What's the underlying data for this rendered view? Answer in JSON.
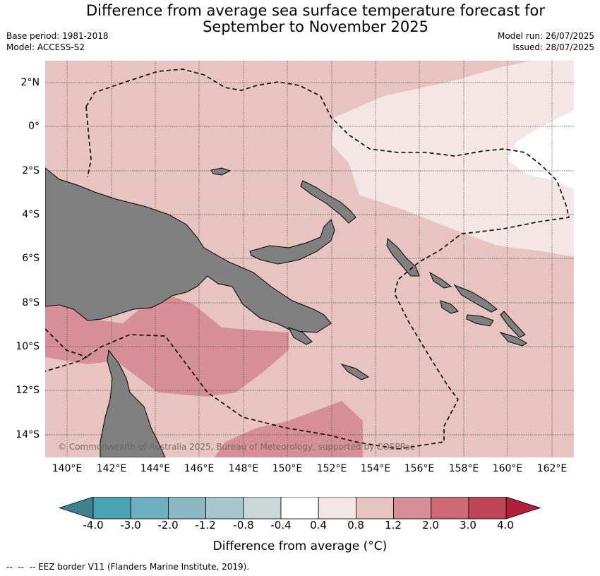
{
  "title_line1": "Difference from average sea surface temperature forecast for",
  "title_line2": "September to November 2025",
  "base_period": "Base period: 1981-2018",
  "model": "Model: ACCESS-S2",
  "model_run": "Model run: 26/07/2025",
  "issued": "Issued: 28/07/2025",
  "copyright": "© Commonwealth of Australia 2025, Bureau of Meteorology, supported by COSPPac",
  "lat_labels": [
    "2°N",
    "0°",
    "2°S",
    "4°S",
    "6°S",
    "8°S",
    "10°S",
    "12°S",
    "14°S"
  ],
  "lon_labels": [
    "140°E",
    "142°E",
    "144°E",
    "146°E",
    "148°E",
    "150°E",
    "152°E",
    "154°E",
    "156°E",
    "158°E",
    "160°E",
    "162°E"
  ],
  "colorbar": {
    "ticks": [
      "-4.0",
      "-3.0",
      "-2.0",
      "-1.2",
      "-0.8",
      "-0.4",
      "0.4",
      "0.8",
      "1.2",
      "2.0",
      "3.0",
      "4.0"
    ],
    "colors": [
      "#3f828f",
      "#4aa2b5",
      "#6eb0bf",
      "#8ab7c3",
      "#a6c7cb",
      "#cad8da",
      "#ffffff",
      "#f4e6e4",
      "#e7c4bf",
      "#d68f96",
      "#cd6975",
      "#be4556",
      "#b0203c"
    ],
    "label": "Difference from average (°C)"
  },
  "footer": "--  --  -- EEZ border V11 (Flanders Marine Institute, 2019)."
}
